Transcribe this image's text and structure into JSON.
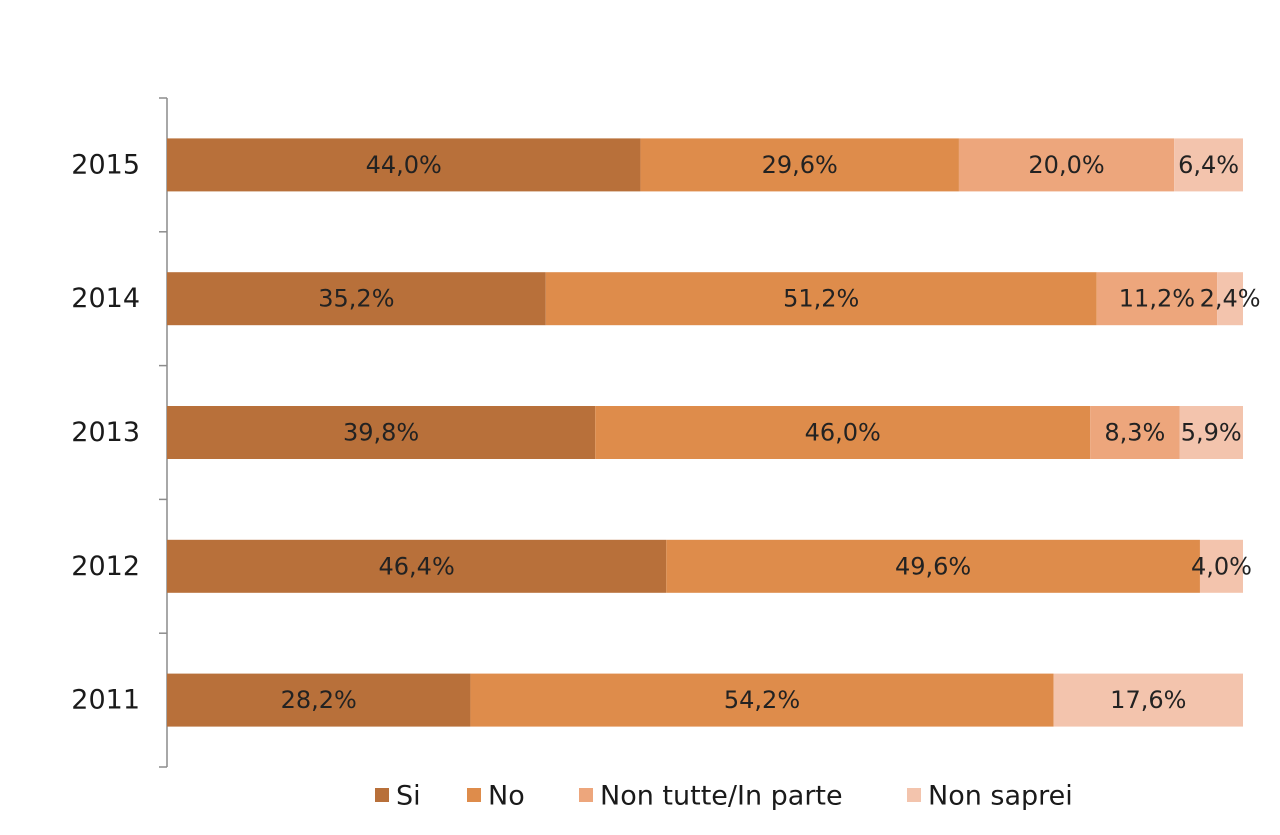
{
  "chart_data": {
    "type": "bar",
    "orientation": "horizontal",
    "stacked": true,
    "title": "",
    "xlabel": "",
    "ylabel": "",
    "xlim": [
      0,
      100
    ],
    "grid": false,
    "legend_position": "bottom",
    "categories": [
      "2015",
      "2014",
      "2013",
      "2012",
      "2011"
    ],
    "series": [
      {
        "name": "Si",
        "color": "#b8703a",
        "values": [
          44.0,
          35.2,
          39.8,
          46.4,
          28.2
        ],
        "labels": [
          "44,0%",
          "35,2%",
          "39,8%",
          "46,4%",
          "28,2%"
        ]
      },
      {
        "name": "No",
        "color": "#de8c4b",
        "values": [
          29.6,
          51.2,
          46.0,
          49.6,
          54.2
        ],
        "labels": [
          "29,6%",
          "51,2%",
          "46,0%",
          "49,6%",
          "54,2%"
        ]
      },
      {
        "name": "Non tutte/In parte",
        "color": "#eda67c",
        "values": [
          20.0,
          11.2,
          8.3,
          0,
          0
        ],
        "labels": [
          "20,0%",
          "11,2%",
          "8,3%",
          "",
          ""
        ]
      },
      {
        "name": "Non saprei",
        "color": "#f3c4ad",
        "values": [
          6.4,
          2.4,
          5.9,
          4.0,
          17.6
        ],
        "labels": [
          "6,4%",
          "2,4%",
          "5,9%",
          "4,0%",
          "17,6%"
        ]
      }
    ]
  }
}
